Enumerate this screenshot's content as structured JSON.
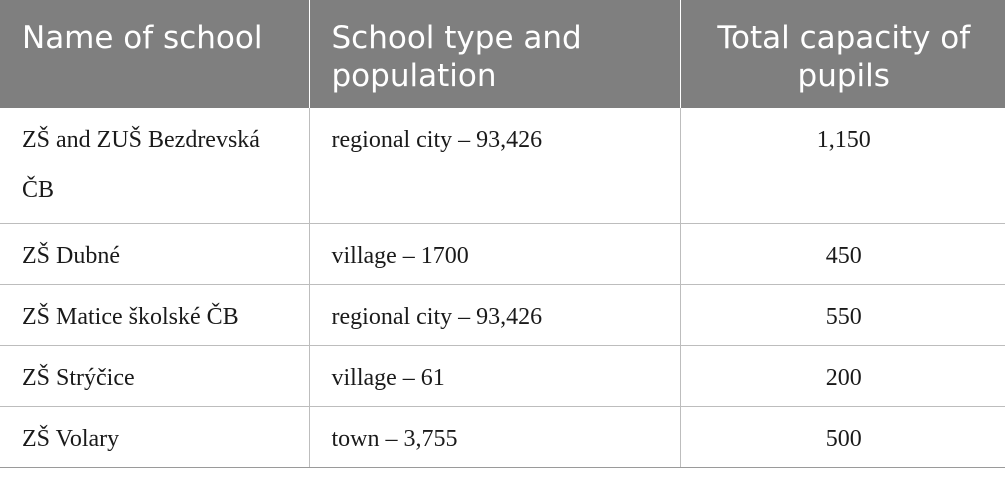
{
  "table": {
    "headers": [
      "Name of school",
      "School type and population",
      "Total capacity of pupils"
    ],
    "rows": [
      [
        "ZŠ and ZUŠ Bezdrevská ČB",
        "regional city – 93,426",
        "1,150"
      ],
      [
        "ZŠ Dubné",
        "village – 1700",
        "450"
      ],
      [
        "ZŠ Matice školské ČB",
        "regional city – 93,426",
        "550"
      ],
      [
        "ZŠ Strýčice",
        "village – 61",
        "200"
      ],
      [
        "ZŠ Volary",
        "town – 3,755",
        "500"
      ]
    ]
  }
}
